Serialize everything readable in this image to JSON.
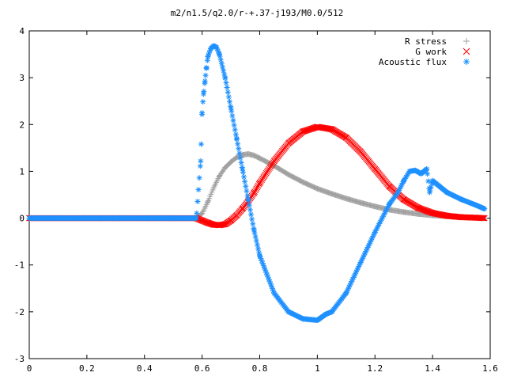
{
  "chart_data": {
    "type": "scatter",
    "title": "m2/n1.5/q2.0/r-+.37-j193/M0.0/512",
    "xlabel": "",
    "ylabel": "",
    "xlim": [
      0,
      1.6
    ],
    "ylim": [
      -3,
      4
    ],
    "xticks": [
      "0",
      "0.2",
      "0.4",
      "0.6",
      "0.8",
      "1",
      "1.2",
      "1.4",
      "1.6"
    ],
    "yticks": [
      "-3",
      "-2",
      "-1",
      "0",
      "1",
      "2",
      "3",
      "4"
    ],
    "grid": false,
    "legend_position": "top-right",
    "series": [
      {
        "name": "R stress",
        "marker": "plus",
        "color": "#a0a0a0",
        "x": [
          0.0,
          0.1,
          0.2,
          0.3,
          0.4,
          0.5,
          0.58,
          0.6,
          0.62,
          0.64,
          0.66,
          0.68,
          0.7,
          0.72,
          0.74,
          0.76,
          0.78,
          0.8,
          0.85,
          0.9,
          0.95,
          1.0,
          1.05,
          1.1,
          1.15,
          1.2,
          1.25,
          1.3,
          1.35,
          1.4,
          1.45,
          1.5,
          1.55,
          1.58
        ],
        "y": [
          0.0,
          0.0,
          0.0,
          0.0,
          0.0,
          0.0,
          0.0,
          0.1,
          0.35,
          0.65,
          0.9,
          1.08,
          1.2,
          1.3,
          1.35,
          1.37,
          1.34,
          1.28,
          1.12,
          0.93,
          0.77,
          0.63,
          0.52,
          0.42,
          0.33,
          0.25,
          0.18,
          0.13,
          0.09,
          0.06,
          0.04,
          0.02,
          0.01,
          0.0
        ]
      },
      {
        "name": "G work",
        "marker": "cross",
        "color": "#ff0000",
        "x": [
          0.0,
          0.1,
          0.2,
          0.3,
          0.4,
          0.5,
          0.58,
          0.6,
          0.62,
          0.64,
          0.66,
          0.68,
          0.7,
          0.72,
          0.74,
          0.76,
          0.78,
          0.8,
          0.85,
          0.9,
          0.95,
          1.0,
          1.05,
          1.1,
          1.15,
          1.2,
          1.25,
          1.3,
          1.35,
          1.4,
          1.45,
          1.5,
          1.55,
          1.58
        ],
        "y": [
          0.0,
          0.0,
          0.0,
          0.0,
          0.0,
          0.0,
          0.0,
          -0.05,
          -0.1,
          -0.14,
          -0.15,
          -0.13,
          -0.05,
          0.06,
          0.2,
          0.36,
          0.54,
          0.75,
          1.22,
          1.6,
          1.85,
          1.95,
          1.9,
          1.72,
          1.42,
          1.05,
          0.68,
          0.4,
          0.22,
          0.11,
          0.05,
          0.02,
          0.01,
          0.0
        ]
      },
      {
        "name": "Acoustic flux",
        "marker": "asterisk",
        "color": "#1e90ff",
        "x": [
          0.0,
          0.1,
          0.2,
          0.3,
          0.4,
          0.5,
          0.58,
          0.595,
          0.6,
          0.605,
          0.61,
          0.615,
          0.62,
          0.63,
          0.64,
          0.65,
          0.66,
          0.68,
          0.7,
          0.72,
          0.74,
          0.76,
          0.78,
          0.8,
          0.85,
          0.9,
          0.95,
          1.0,
          1.03,
          1.05,
          1.1,
          1.15,
          1.2,
          1.25,
          1.28,
          1.3,
          1.32,
          1.34,
          1.36,
          1.38,
          1.39,
          1.4,
          1.45,
          1.5,
          1.55,
          1.58
        ],
        "y": [
          0.0,
          0.0,
          0.0,
          0.0,
          0.0,
          0.0,
          0.0,
          1.22,
          2.25,
          2.65,
          2.93,
          3.2,
          3.45,
          3.62,
          3.68,
          3.65,
          3.5,
          3.0,
          2.35,
          1.7,
          1.05,
          0.4,
          -0.25,
          -0.8,
          -1.6,
          -2.0,
          -2.15,
          -2.18,
          -2.05,
          -2.0,
          -1.6,
          -0.95,
          -0.3,
          0.3,
          0.55,
          0.8,
          1.0,
          1.02,
          0.95,
          1.05,
          0.55,
          0.8,
          0.55,
          0.4,
          0.28,
          0.2
        ]
      }
    ]
  }
}
